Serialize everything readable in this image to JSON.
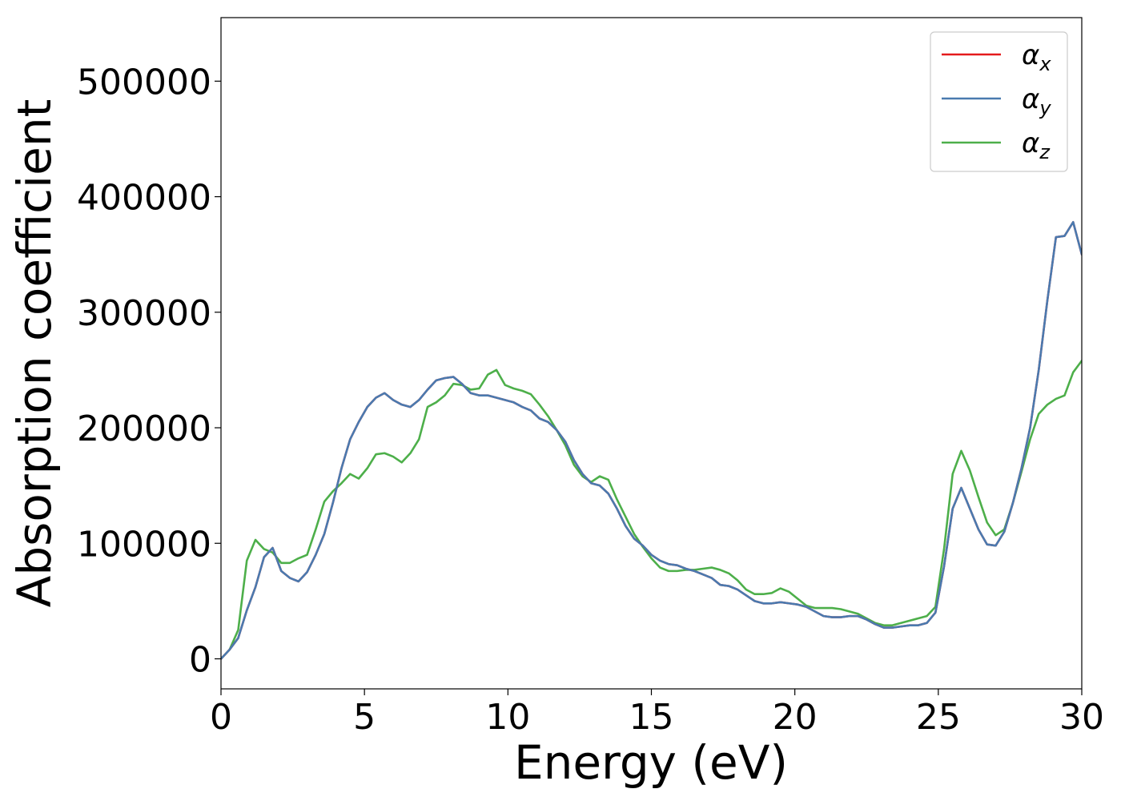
{
  "chart_data": {
    "type": "line",
    "title": "",
    "xlabel": "Energy (eV)",
    "ylabel": "Absorption coefficient",
    "xlim": [
      0,
      30
    ],
    "ylim": [
      -26000,
      555000
    ],
    "xticks": [
      0,
      5,
      10,
      15,
      20,
      25,
      30
    ],
    "xtick_labels": [
      "0",
      "5",
      "10",
      "15",
      "20",
      "25",
      "30"
    ],
    "yticks": [
      0,
      100000,
      200000,
      300000,
      400000,
      500000
    ],
    "ytick_labels": [
      "0",
      "100000",
      "200000",
      "300000",
      "400000",
      "500000"
    ],
    "grid": false,
    "legend_position": "top-right",
    "series": [
      {
        "name": "α_x",
        "legend_label": {
          "base": "α",
          "sub": "x"
        },
        "color": "#e41a1c",
        "x": [
          0,
          0.3,
          0.6,
          0.9,
          1.2,
          1.5,
          1.8,
          2.1,
          2.4,
          2.7,
          3.0,
          3.3,
          3.6,
          3.9,
          4.2,
          4.5,
          4.8,
          5.1,
          5.4,
          5.7,
          6.0,
          6.3,
          6.6,
          6.9,
          7.2,
          7.5,
          7.8,
          8.1,
          8.4,
          8.7,
          9.0,
          9.3,
          9.6,
          9.9,
          10.2,
          10.5,
          10.8,
          11.1,
          11.4,
          11.7,
          12.0,
          12.3,
          12.6,
          12.9,
          13.2,
          13.5,
          13.8,
          14.1,
          14.4,
          14.7,
          15.0,
          15.3,
          15.6,
          15.9,
          16.2,
          16.5,
          16.8,
          17.1,
          17.4,
          17.7,
          18.0,
          18.3,
          18.6,
          18.9,
          19.2,
          19.5,
          19.8,
          20.1,
          20.4,
          20.7,
          21.0,
          21.3,
          21.6,
          21.9,
          22.2,
          22.5,
          22.8,
          23.1,
          23.4,
          23.7,
          24.0,
          24.3,
          24.6,
          24.9,
          25.2,
          25.5,
          25.8,
          26.1,
          26.4,
          26.7,
          27.0,
          27.3,
          27.6,
          27.9,
          28.2,
          28.5,
          28.8,
          29.1,
          29.4,
          29.7,
          30.0
        ],
        "y": [
          0,
          8000,
          18000,
          42000,
          62000,
          88000,
          96000,
          76000,
          70000,
          67000,
          75000,
          90000,
          108000,
          135000,
          165000,
          190000,
          205000,
          218000,
          226000,
          230000,
          224000,
          220000,
          218000,
          224000,
          233000,
          241000,
          243000,
          244000,
          238000,
          230000,
          228000,
          228000,
          226000,
          224000,
          222000,
          218000,
          215000,
          208000,
          205000,
          198000,
          188000,
          172000,
          160000,
          152000,
          150000,
          143000,
          130000,
          115000,
          104000,
          98000,
          90000,
          85000,
          82000,
          81000,
          78000,
          76000,
          73000,
          70000,
          64000,
          63000,
          60000,
          55000,
          50000,
          48000,
          48000,
          49000,
          48000,
          47000,
          45000,
          41000,
          37000,
          36000,
          36000,
          37000,
          37000,
          34000,
          30000,
          27000,
          27000,
          28000,
          29000,
          29000,
          31000,
          40000,
          80000,
          130000,
          148000,
          130000,
          112000,
          99000,
          98000,
          110000,
          135000,
          165000,
          200000,
          250000,
          310000,
          365000,
          366000,
          378000,
          350000
        ]
      },
      {
        "name": "α_y",
        "legend_label": {
          "base": "α",
          "sub": "y"
        },
        "color": "#4a7aaf",
        "x": [
          0,
          0.3,
          0.6,
          0.9,
          1.2,
          1.5,
          1.8,
          2.1,
          2.4,
          2.7,
          3.0,
          3.3,
          3.6,
          3.9,
          4.2,
          4.5,
          4.8,
          5.1,
          5.4,
          5.7,
          6.0,
          6.3,
          6.6,
          6.9,
          7.2,
          7.5,
          7.8,
          8.1,
          8.4,
          8.7,
          9.0,
          9.3,
          9.6,
          9.9,
          10.2,
          10.5,
          10.8,
          11.1,
          11.4,
          11.7,
          12.0,
          12.3,
          12.6,
          12.9,
          13.2,
          13.5,
          13.8,
          14.1,
          14.4,
          14.7,
          15.0,
          15.3,
          15.6,
          15.9,
          16.2,
          16.5,
          16.8,
          17.1,
          17.4,
          17.7,
          18.0,
          18.3,
          18.6,
          18.9,
          19.2,
          19.5,
          19.8,
          20.1,
          20.4,
          20.7,
          21.0,
          21.3,
          21.6,
          21.9,
          22.2,
          22.5,
          22.8,
          23.1,
          23.4,
          23.7,
          24.0,
          24.3,
          24.6,
          24.9,
          25.2,
          25.5,
          25.8,
          26.1,
          26.4,
          26.7,
          27.0,
          27.3,
          27.6,
          27.9,
          28.2,
          28.5,
          28.8,
          29.1,
          29.4,
          29.7,
          30.0
        ],
        "y": [
          0,
          8000,
          18000,
          42000,
          62000,
          88000,
          96000,
          76000,
          70000,
          67000,
          75000,
          90000,
          108000,
          135000,
          165000,
          190000,
          205000,
          218000,
          226000,
          230000,
          224000,
          220000,
          218000,
          224000,
          233000,
          241000,
          243000,
          244000,
          238000,
          230000,
          228000,
          228000,
          226000,
          224000,
          222000,
          218000,
          215000,
          208000,
          205000,
          198000,
          188000,
          172000,
          160000,
          152000,
          150000,
          143000,
          130000,
          115000,
          104000,
          98000,
          90000,
          85000,
          82000,
          81000,
          78000,
          76000,
          73000,
          70000,
          64000,
          63000,
          60000,
          55000,
          50000,
          48000,
          48000,
          49000,
          48000,
          47000,
          45000,
          41000,
          37000,
          36000,
          36000,
          37000,
          37000,
          34000,
          30000,
          27000,
          27000,
          28000,
          29000,
          29000,
          31000,
          40000,
          80000,
          130000,
          148000,
          130000,
          112000,
          99000,
          98000,
          110000,
          135000,
          165000,
          200000,
          250000,
          310000,
          365000,
          366000,
          378000,
          350000
        ]
      },
      {
        "name": "α_z",
        "legend_label": {
          "base": "α",
          "sub": "z"
        },
        "color": "#4daf4a",
        "x": [
          0,
          0.3,
          0.6,
          0.9,
          1.2,
          1.5,
          1.8,
          2.1,
          2.4,
          2.7,
          3.0,
          3.3,
          3.6,
          3.9,
          4.2,
          4.5,
          4.8,
          5.1,
          5.4,
          5.7,
          6.0,
          6.3,
          6.6,
          6.9,
          7.2,
          7.5,
          7.8,
          8.1,
          8.4,
          8.7,
          9.0,
          9.3,
          9.6,
          9.9,
          10.2,
          10.5,
          10.8,
          11.1,
          11.4,
          11.7,
          12.0,
          12.3,
          12.6,
          12.9,
          13.2,
          13.5,
          13.8,
          14.1,
          14.4,
          14.7,
          15.0,
          15.3,
          15.6,
          15.9,
          16.2,
          16.5,
          16.8,
          17.1,
          17.4,
          17.7,
          18.0,
          18.3,
          18.6,
          18.9,
          19.2,
          19.5,
          19.8,
          20.1,
          20.4,
          20.7,
          21.0,
          21.3,
          21.6,
          21.9,
          22.2,
          22.5,
          22.8,
          23.1,
          23.4,
          23.7,
          24.0,
          24.3,
          24.6,
          24.9,
          25.2,
          25.5,
          25.8,
          26.1,
          26.4,
          26.7,
          27.0,
          27.3,
          27.6,
          27.9,
          28.2,
          28.5,
          28.8,
          29.1,
          29.4,
          29.7,
          30.0
        ],
        "y": [
          0,
          8000,
          25000,
          85000,
          103000,
          95000,
          92000,
          83000,
          83000,
          87000,
          90000,
          112000,
          136000,
          145000,
          152000,
          160000,
          156000,
          165000,
          177000,
          178000,
          175000,
          170000,
          178000,
          190000,
          218000,
          222000,
          228000,
          238000,
          237000,
          233000,
          234000,
          246000,
          250000,
          237000,
          234000,
          232000,
          229000,
          220000,
          210000,
          198000,
          185000,
          168000,
          158000,
          153000,
          158000,
          155000,
          138000,
          123000,
          108000,
          97000,
          87000,
          79000,
          76000,
          76000,
          77000,
          77000,
          78000,
          79000,
          77000,
          74000,
          68000,
          60000,
          56000,
          56000,
          57000,
          61000,
          58000,
          52000,
          46000,
          44000,
          44000,
          44000,
          43000,
          41000,
          39000,
          35000,
          31000,
          29000,
          29000,
          31000,
          33000,
          35000,
          37000,
          45000,
          95000,
          160000,
          180000,
          163000,
          140000,
          118000,
          107000,
          112000,
          135000,
          162000,
          190000,
          212000,
          220000,
          225000,
          228000,
          248000,
          258000
        ]
      }
    ]
  }
}
